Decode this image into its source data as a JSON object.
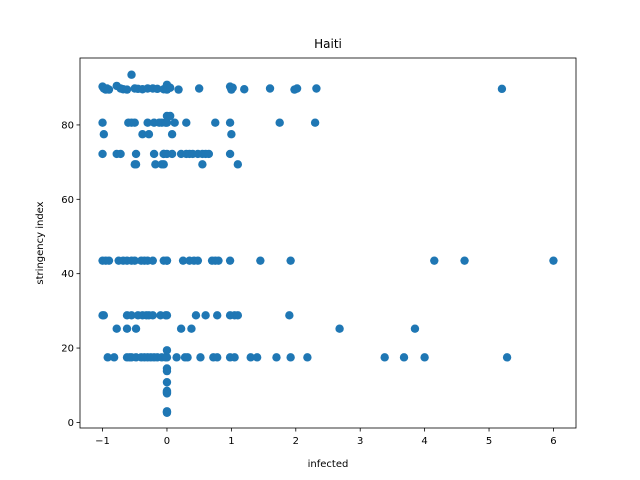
{
  "chart_data": {
    "type": "scatter",
    "title": "Haiti",
    "xlabel": "infected",
    "ylabel": "stringency index",
    "xlim": [
      -1.35,
      6.35
    ],
    "ylim": [
      -1.5,
      98
    ],
    "xticks": [
      -1,
      0,
      1,
      2,
      3,
      4,
      5,
      6
    ],
    "xtick_labels": [
      "−1",
      "0",
      "1",
      "2",
      "3",
      "4",
      "5",
      "6"
    ],
    "yticks": [
      0,
      20,
      40,
      60,
      80
    ],
    "ytick_labels": [
      "0",
      "20",
      "40",
      "60",
      "80"
    ],
    "grid": false,
    "legend": "none",
    "marker_color": "#1f77b4",
    "series": [
      {
        "x": [
          -1.0,
          -0.98,
          -0.95,
          -0.93,
          -0.9,
          -0.78,
          -0.72,
          -0.68,
          -0.62,
          -0.55,
          -0.5,
          -0.45,
          -0.38,
          -0.3,
          -0.22,
          -0.15,
          -0.05,
          0.0,
          0.0,
          0.05,
          0.18,
          0.5,
          0.98,
          1.0,
          1.02,
          1.2,
          1.6,
          1.98,
          2.02,
          2.32,
          5.2,
          -1.0,
          -0.98,
          -0.6,
          -0.55,
          -0.5,
          -0.38,
          -0.3,
          -0.28,
          -0.2,
          -0.12,
          -0.08,
          -0.02,
          0.0,
          0.0,
          0.05,
          0.08,
          0.12,
          0.3,
          0.75,
          0.98,
          1.0,
          1.75,
          2.3,
          -0.5,
          -0.48,
          -0.18,
          -0.08,
          -0.05,
          -1.0,
          -0.78,
          -0.72,
          -0.48,
          -0.2,
          -0.05,
          0.08,
          0.22,
          0.3,
          0.35,
          0.4,
          0.48,
          0.55,
          0.6,
          0.65,
          0.98,
          1.1,
          -0.05,
          0.0,
          0.55,
          -1.0,
          -0.95,
          -0.9,
          -0.75,
          -0.68,
          -0.62,
          -0.55,
          -0.5,
          -0.4,
          -0.35,
          -0.3,
          -0.22,
          -0.05,
          0.0,
          0.0,
          0.25,
          0.35,
          0.42,
          0.48,
          0.7,
          0.75,
          0.8,
          0.98,
          1.45,
          1.92,
          4.15,
          4.62,
          6.0,
          -1.0,
          -0.98,
          -0.62,
          -0.55,
          -0.45,
          -0.38,
          -0.32,
          -0.28,
          -0.22,
          -0.1,
          -0.02,
          0.0,
          0.45,
          0.6,
          0.78,
          0.98,
          1.05,
          1.1,
          1.9,
          -0.78,
          -0.62,
          -0.48,
          0.22,
          0.38,
          2.68,
          3.85,
          -0.92,
          -0.82,
          -0.62,
          -0.58,
          -0.55,
          -0.48,
          -0.4,
          -0.35,
          -0.3,
          -0.25,
          -0.2,
          -0.15,
          -0.08,
          -0.02,
          0.0,
          0.0,
          0.15,
          0.28,
          0.32,
          0.52,
          0.72,
          0.78,
          0.98,
          1.05,
          1.3,
          1.4,
          1.7,
          1.92,
          2.18,
          3.38,
          3.68,
          4.0,
          5.28,
          0.0,
          0.0,
          0.0,
          0.0,
          0.0,
          0.0,
          0.0,
          0.0,
          0.0,
          0.0
        ],
        "y": [
          90.3,
          89.8,
          89.5,
          89.8,
          89.5,
          90.5,
          89.8,
          89.6,
          89.5,
          93.5,
          89.8,
          89.7,
          89.6,
          89.8,
          89.8,
          89.7,
          89.6,
          90.8,
          89.5,
          90.0,
          89.5,
          89.8,
          90.3,
          89.5,
          90.0,
          89.6,
          89.8,
          89.5,
          89.8,
          89.8,
          89.7,
          80.6,
          77.5,
          80.6,
          80.6,
          80.6,
          77.5,
          80.6,
          77.5,
          80.6,
          80.6,
          80.6,
          80.6,
          82.4,
          80.6,
          82.4,
          77.5,
          80.6,
          80.6,
          80.6,
          80.6,
          77.5,
          80.6,
          80.6,
          69.4,
          69.4,
          69.4,
          69.4,
          69.4,
          72.2,
          72.2,
          72.2,
          72.2,
          72.2,
          72.2,
          72.2,
          72.2,
          72.2,
          72.2,
          72.2,
          72.2,
          72.2,
          72.2,
          72.2,
          72.2,
          69.4,
          72.2,
          72.2,
          69.4,
          43.5,
          43.5,
          43.5,
          43.5,
          43.5,
          43.5,
          43.5,
          43.5,
          43.5,
          43.5,
          43.5,
          43.5,
          43.5,
          43.5,
          43.5,
          43.5,
          43.5,
          43.5,
          43.5,
          43.5,
          43.5,
          43.5,
          43.5,
          43.5,
          43.5,
          43.5,
          43.5,
          43.5,
          28.8,
          28.8,
          28.8,
          28.8,
          28.8,
          28.8,
          28.8,
          28.8,
          28.8,
          28.8,
          28.8,
          28.8,
          28.8,
          28.8,
          28.8,
          28.8,
          28.8,
          28.8,
          28.8,
          25.2,
          25.2,
          25.2,
          25.2,
          25.2,
          25.2,
          25.2,
          17.5,
          17.5,
          17.5,
          17.5,
          17.5,
          17.5,
          17.5,
          17.5,
          17.5,
          17.5,
          17.5,
          17.5,
          17.5,
          17.5,
          17.5,
          19.4,
          17.5,
          17.5,
          17.5,
          17.5,
          17.5,
          17.5,
          17.5,
          17.5,
          17.5,
          17.5,
          17.5,
          17.5,
          17.5,
          17.5,
          17.5,
          17.5,
          17.5,
          14.5,
          13.8,
          10.8,
          8.5,
          8.0,
          7.8,
          8.3,
          3.0,
          2.8,
          2.6
        ]
      }
    ]
  }
}
